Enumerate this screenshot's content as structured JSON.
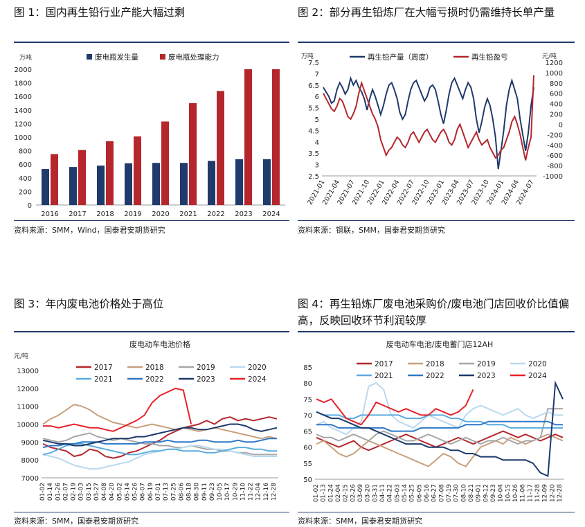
{
  "panels": {
    "p1": {
      "title": "图 1：国内再生铅行业产能大幅过剩",
      "source": "资料来源：SMM，Wind，国泰君安期货研究"
    },
    "p2": {
      "title": "图 2：部分再生铅炼厂在大幅亏损时仍需维持长单产量",
      "source": "资料来源：钢联，SMM，国泰君安期货研究"
    },
    "p3": {
      "title": "图 3：年内废电池价格处于高位",
      "source": "资料来源：SMM，国泰君安期货研究"
    },
    "p4": {
      "title": "图 4：再生铅炼厂废电池采购价/废电池门店回收价比值偏高，反映回收环节利润较厚",
      "source": "资料来源：SMM，国泰君安期货研究"
    }
  },
  "colors": {
    "navy": "#1f3a6b",
    "red": "#b5272d",
    "brown": "#c9a07d",
    "gray": "#a6a6a6",
    "lightblue": "#b9d9ef",
    "skyblue": "#5aace0",
    "midblue": "#2e79c7",
    "darknavy": "#1b3a6b",
    "brightred": "#e8212a"
  },
  "chart_data": [
    {
      "type": "bar",
      "ylabel_unit": "万吨",
      "ylim": [
        0,
        2000
      ],
      "yticks": [
        0,
        200,
        400,
        600,
        800,
        1000,
        1200,
        1400,
        1600,
        1800,
        2000
      ],
      "categories": [
        "2016",
        "2017",
        "2018",
        "2019",
        "2020",
        "2021",
        "2022",
        "2023",
        "2024"
      ],
      "series": [
        {
          "name": "废电瓶发生量",
          "color": "#1f3a6b",
          "values": [
            530,
            560,
            580,
            615,
            620,
            620,
            650,
            675,
            675
          ]
        },
        {
          "name": "废电瓶处理能力",
          "color": "#b5272d",
          "values": [
            750,
            810,
            940,
            1010,
            1230,
            1500,
            1680,
            2000,
            2000
          ]
        }
      ]
    },
    {
      "type": "line",
      "left_unit": "万吨",
      "right_unit": "元/吨",
      "ylim_left": [
        2.5,
        7.5
      ],
      "yticks_left": [
        2.5,
        3,
        3.5,
        4,
        4.5,
        5,
        5.5,
        6,
        6.5,
        7,
        7.5
      ],
      "ylim_right": [
        -1000,
        1200
      ],
      "yticks_right": [
        -1000,
        -800,
        -600,
        -400,
        -200,
        0,
        200,
        400,
        600,
        800,
        1000,
        1200
      ],
      "x_ticks": [
        "2021-01",
        "2021-04",
        "2021-07",
        "2021-10",
        "2022-01",
        "2022-04",
        "2022-07",
        "2022-10",
        "2023-01",
        "2023-04",
        "2023-07",
        "2023-10",
        "2024-01",
        "2024-04",
        "2024-07"
      ],
      "series": [
        {
          "name": "再生铅产量（周度）",
          "axis": "left",
          "color": "#1f3a6b",
          "values": [
            6.4,
            6.2,
            6.0,
            5.7,
            5.8,
            6.3,
            6.6,
            6.4,
            6.1,
            6.3,
            6.8,
            6.5,
            6.7,
            6.4,
            6.2,
            5.9,
            5.4,
            5.9,
            6.3,
            6.0,
            5.6,
            5.2,
            5.6,
            6.1,
            6.5,
            6.6,
            6.3,
            5.9,
            5.3,
            5.0,
            5.2,
            5.8,
            6.3,
            6.6,
            6.7,
            6.4,
            6.1,
            5.8,
            6.0,
            6.4,
            6.5,
            6.3,
            5.8,
            5.2,
            4.8,
            5.4,
            6.1,
            6.6,
            6.8,
            6.5,
            6.2,
            5.9,
            6.3,
            6.6,
            6.4,
            5.9,
            5.0,
            4.4,
            4.9,
            5.5,
            5.9,
            5.6,
            5.0,
            4.2,
            2.8,
            3.6,
            4.5,
            5.6,
            6.3,
            6.7,
            6.3,
            5.9,
            5.0,
            4.3,
            3.6,
            4.4,
            5.6,
            6.4
          ]
        },
        {
          "name": "再生铅盈亏",
          "axis": "right",
          "color": "#b5272d",
          "values": [
            600,
            500,
            400,
            300,
            250,
            350,
            500,
            450,
            300,
            150,
            100,
            200,
            350,
            600,
            800,
            650,
            500,
            350,
            200,
            100,
            -50,
            -300,
            -450,
            -600,
            -500,
            -450,
            -350,
            -250,
            -300,
            -400,
            -450,
            -350,
            -200,
            -150,
            -250,
            -350,
            -250,
            -150,
            -100,
            -200,
            -300,
            -350,
            -250,
            -150,
            -100,
            -200,
            -350,
            -400,
            -300,
            -100,
            0,
            -150,
            -300,
            -450,
            -350,
            -250,
            -150,
            -300,
            -400,
            -350,
            -300,
            -450,
            -550,
            -650,
            -600,
            -500,
            -450,
            -300,
            -150,
            50,
            150,
            0,
            -200,
            -450,
            -700,
            -450,
            -250,
            950
          ]
        }
      ]
    },
    {
      "type": "line",
      "title": "废电动车电池价格",
      "ylabel_unit": "元/吨",
      "ylim": [
        7000,
        13000
      ],
      "yticks": [
        7000,
        8000,
        9000,
        10000,
        11000,
        12000,
        13000
      ],
      "x_ticks": [
        "01-02",
        "01-14",
        "01-26",
        "02-07",
        "02-19",
        "03-03",
        "03-15",
        "03-27",
        "04-08",
        "04-20",
        "05-02",
        "05-14",
        "05-26",
        "06-07",
        "06-19",
        "07-01",
        "07-13",
        "07-25",
        "08-06",
        "08-18",
        "08-30",
        "09-11",
        "09-23",
        "10-05",
        "10-17",
        "10-29",
        "11-10",
        "11-22",
        "12-04",
        "12-16",
        "12-28"
      ],
      "series": [
        {
          "name": "2017",
          "color": "#b5272d",
          "values": [
            8900,
            8700,
            8600,
            8500,
            8200,
            8300,
            8600,
            8500,
            8200,
            8100,
            8200,
            8400,
            8500,
            8700,
            8900,
            9100,
            9400,
            9600,
            9800,
            9900,
            10000,
            10200,
            10000,
            10300,
            10400,
            10200,
            10300,
            10200,
            10300,
            10400,
            10300
          ]
        },
        {
          "name": "2018",
          "color": "#c9a07d",
          "values": [
            10000,
            10300,
            10500,
            10800,
            11100,
            11000,
            10800,
            10500,
            10300,
            10100,
            10000,
            9900,
            9800,
            9900,
            10000,
            9900,
            9800,
            9700,
            9800,
            9700,
            9600,
            9700,
            9800,
            9700,
            9600,
            9500,
            9400,
            9300,
            9200,
            9300,
            9200
          ]
        },
        {
          "name": "2019",
          "color": "#a6a6a6",
          "values": [
            9200,
            9100,
            9000,
            9100,
            9300,
            9400,
            9500,
            9300,
            9200,
            9100,
            9200,
            9100,
            9000,
            8900,
            8900,
            8800,
            8800,
            8700,
            8700,
            8800,
            8700,
            8600,
            8600,
            8500,
            8500,
            8400,
            8400,
            8300,
            8300,
            8300,
            8300
          ]
        },
        {
          "name": "2020",
          "color": "#b9d9ef",
          "values": [
            8300,
            8200,
            8100,
            7900,
            7700,
            7600,
            7500,
            7500,
            7600,
            7700,
            7800,
            7900,
            8100,
            8300,
            8400,
            8500,
            8600,
            8600,
            8700,
            8800,
            8800,
            8700,
            8600,
            8600,
            8500,
            8400,
            8300,
            8200,
            8200,
            8200,
            8200
          ]
        },
        {
          "name": "2021",
          "color": "#5aace0",
          "values": [
            8300,
            8400,
            8600,
            8800,
            8900,
            8900,
            8800,
            8700,
            8600,
            8500,
            8400,
            8300,
            8300,
            8400,
            8500,
            8500,
            8600,
            8600,
            8500,
            8500,
            8500,
            8400,
            8400,
            8500,
            8600,
            8700,
            8700,
            8600,
            8600,
            8500,
            8500
          ]
        },
        {
          "name": "2022",
          "color": "#2e79c7",
          "values": [
            8700,
            8800,
            8800,
            8900,
            8900,
            9000,
            9000,
            9000,
            8900,
            8900,
            8900,
            8900,
            8900,
            9000,
            9000,
            9000,
            9100,
            9000,
            9000,
            9000,
            9100,
            9100,
            9000,
            9000,
            9000,
            9100,
            9000,
            9000,
            9100,
            9200,
            9200
          ]
        },
        {
          "name": "2023",
          "color": "#1b3a6b",
          "values": [
            9100,
            9000,
            8900,
            8900,
            8800,
            8800,
            8900,
            9000,
            9100,
            9200,
            9200,
            9200,
            9300,
            9300,
            9400,
            9500,
            9600,
            9700,
            9800,
            9800,
            9700,
            9700,
            9800,
            9900,
            10000,
            10000,
            9900,
            9700,
            9600,
            9700,
            9800
          ]
        },
        {
          "name": "2024",
          "color": "#e8212a",
          "values": [
            9900,
            9900,
            9800,
            9900,
            10000,
            9900,
            9800,
            9800,
            9700,
            9600,
            9800,
            10000,
            10200,
            10500,
            11200,
            11600,
            11800,
            12000,
            11900,
            10000
          ]
        }
      ]
    },
    {
      "type": "line",
      "title": "废电动车电池/废电蓄门店12AH",
      "ylim": [
        50,
        85
      ],
      "yticks": [
        50,
        55,
        60,
        65,
        70,
        75,
        80,
        85
      ],
      "x_ticks": [
        "01-02",
        "01-13",
        "01-24",
        "02-04",
        "02-15",
        "02-26",
        "03-09",
        "03-20",
        "03-31",
        "04-11",
        "04-22",
        "05-03",
        "05-14",
        "05-25",
        "06-05",
        "06-16",
        "06-27",
        "07-08",
        "07-19",
        "07-30",
        "08-10",
        "08-21",
        "09-01",
        "09-12",
        "09-23",
        "10-04",
        "10-15",
        "10-26",
        "11-06",
        "11-17",
        "11-28",
        "12-09",
        "12-20",
        "12-28"
      ],
      "series": [
        {
          "name": "2017",
          "color": "#b5272d",
          "values": [
            63,
            62,
            61,
            60,
            61,
            62,
            60,
            59,
            60,
            61,
            62,
            63,
            64,
            63,
            62,
            61,
            60,
            61,
            62,
            63,
            62,
            61,
            62,
            63,
            64,
            65,
            64,
            63,
            64,
            63,
            62,
            63,
            64,
            63
          ]
        },
        {
          "name": "2018",
          "color": "#c9a07d",
          "values": [
            61,
            62,
            60,
            58,
            57,
            58,
            60,
            62,
            61,
            60,
            59,
            58,
            57,
            56,
            55,
            54,
            56,
            58,
            57,
            55,
            54,
            57,
            60,
            61,
            62,
            61,
            63,
            62,
            61,
            62,
            63,
            64,
            63,
            62
          ]
        },
        {
          "name": "2019",
          "color": "#a6a6a6",
          "values": [
            64,
            63,
            63,
            62,
            63,
            64,
            63,
            62,
            64,
            65,
            64,
            63,
            62,
            62,
            63,
            64,
            63,
            62,
            61,
            62,
            63,
            62,
            61,
            62,
            62,
            63,
            62,
            61,
            62,
            62,
            63,
            72,
            72,
            72
          ]
        },
        {
          "name": "2020",
          "color": "#b9d9ef",
          "values": [
            67,
            68,
            66,
            65,
            64,
            66,
            68,
            79,
            80,
            78,
            70,
            68,
            67,
            66,
            68,
            70,
            69,
            68,
            67,
            66,
            70,
            72,
            73,
            72,
            71,
            70,
            71,
            72,
            70,
            69,
            70,
            71,
            70,
            70
          ]
        },
        {
          "name": "2021",
          "color": "#5aace0",
          "values": [
            71,
            70,
            70,
            70,
            69,
            69,
            70,
            70,
            70,
            70,
            70,
            70,
            69,
            69,
            69,
            70,
            70,
            70,
            69,
            69,
            68,
            68,
            68,
            67,
            67,
            67,
            66,
            66,
            66,
            66,
            66,
            66,
            66,
            66
          ]
        },
        {
          "name": "2022",
          "color": "#2e79c7",
          "values": [
            67,
            67,
            67,
            66,
            66,
            66,
            66,
            66,
            66,
            66,
            65,
            65,
            65,
            65,
            66,
            66,
            66,
            66,
            66,
            66,
            67,
            67,
            67,
            68,
            68,
            68,
            68,
            68,
            68,
            68,
            68,
            68,
            67,
            67
          ]
        },
        {
          "name": "2023",
          "color": "#1b3a6b",
          "values": [
            71,
            70,
            69,
            69,
            68,
            67,
            66,
            66,
            65,
            64,
            63,
            62,
            61,
            61,
            61,
            60,
            60,
            60,
            59,
            59,
            58,
            58,
            57,
            57,
            57,
            56,
            56,
            56,
            56,
            55,
            52,
            51,
            80,
            75
          ]
        },
        {
          "name": "2024",
          "color": "#e8212a",
          "values": [
            75,
            74,
            75,
            72,
            69,
            68,
            67,
            70,
            74,
            73,
            72,
            71,
            72,
            71,
            70,
            70,
            72,
            71,
            70,
            71,
            73,
            78
          ]
        }
      ]
    }
  ]
}
